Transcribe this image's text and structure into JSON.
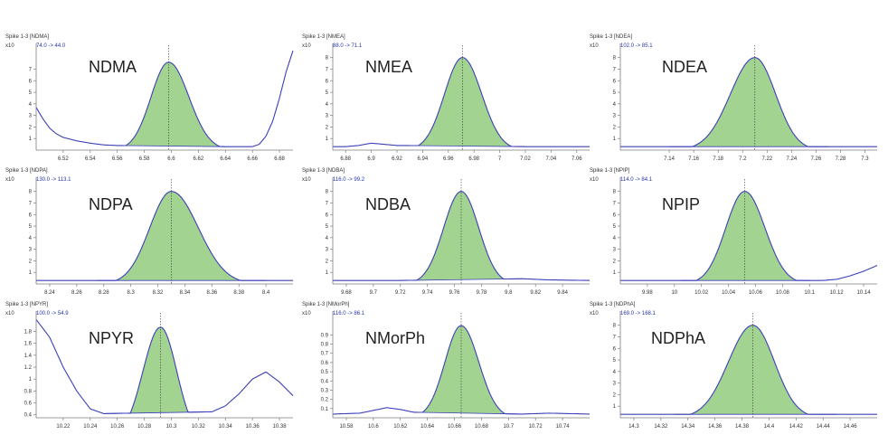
{
  "colors": {
    "fill": "#a3d391",
    "line": "#3b3fb8",
    "axis": "#7d7d7d",
    "marker": "#333333"
  },
  "chart_data": [
    {
      "type": "line",
      "title": "NDMA",
      "header": "Spike 1-3 [NDMA]",
      "scale_label": "x10",
      "transition": "74.0 -> 44.0",
      "xlim": [
        6.5,
        6.69
      ],
      "ylim": [
        0,
        8.6
      ],
      "xticks": [
        "6.52",
        "6.54",
        "6.56",
        "6.58",
        "6.6",
        "6.62",
        "6.64",
        "6.66",
        "6.68"
      ],
      "yticks": [
        "1",
        "2",
        "3",
        "4",
        "5",
        "6",
        "7"
      ],
      "peak": {
        "center": 6.598,
        "height": 7.6,
        "sigma_left": 0.013,
        "sigma_right": 0.015,
        "fill_from": 6.56,
        "fill_to": 6.64
      },
      "curve": [
        [
          6.5,
          3.7
        ],
        [
          6.505,
          2.7
        ],
        [
          6.51,
          1.9
        ],
        [
          6.515,
          1.4
        ],
        [
          6.52,
          1.1
        ],
        [
          6.53,
          0.8
        ],
        [
          6.54,
          0.6
        ],
        [
          6.55,
          0.45
        ],
        [
          6.56,
          0.4
        ],
        [
          6.64,
          0.3
        ],
        [
          6.65,
          0.3
        ],
        [
          6.66,
          0.3
        ],
        [
          6.665,
          0.5
        ],
        [
          6.67,
          1.2
        ],
        [
          6.675,
          2.5
        ],
        [
          6.68,
          4.5
        ],
        [
          6.685,
          6.8
        ],
        [
          6.69,
          8.6
        ]
      ]
    },
    {
      "type": "line",
      "title": "NMEA",
      "header": "Spike 1-3 [NMEA]",
      "scale_label": "x10",
      "transition": "88.0 -> 71.1",
      "xlim": [
        6.87,
        7.07
      ],
      "ylim": [
        0,
        8.6
      ],
      "xticks": [
        "6.88",
        "6.9",
        "6.92",
        "6.94",
        "6.96",
        "6.98",
        "7",
        "7.02",
        "7.04",
        "7.06"
      ],
      "yticks": [
        "1",
        "2",
        "3",
        "4",
        "5",
        "6",
        "7",
        "8"
      ],
      "peak": {
        "center": 6.971,
        "height": 8.0,
        "sigma_left": 0.014,
        "sigma_right": 0.015,
        "fill_from": 6.925,
        "fill_to": 7.02
      },
      "curve": [
        [
          6.87,
          0.3
        ],
        [
          6.88,
          0.3
        ],
        [
          6.89,
          0.4
        ],
        [
          6.9,
          0.6
        ],
        [
          6.91,
          0.5
        ],
        [
          6.92,
          0.4
        ],
        [
          6.925,
          0.4
        ],
        [
          7.02,
          0.3
        ],
        [
          7.04,
          0.3
        ],
        [
          7.07,
          0.3
        ]
      ]
    },
    {
      "type": "line",
      "title": "NDEA",
      "header": "Spike 1-3 [NDEA]",
      "scale_label": "x10",
      "transition": "102.0 -> 85.1",
      "xlim": [
        7.1,
        7.31
      ],
      "ylim": [
        0,
        8.6
      ],
      "xticks": [
        "7.14",
        "7.16",
        "7.18",
        "7.2",
        "7.22",
        "7.24",
        "7.26",
        "7.28",
        "7.3"
      ],
      "yticks": [
        "1",
        "2",
        "3",
        "4",
        "5",
        "6",
        "7",
        "8"
      ],
      "peak": {
        "center": 7.21,
        "height": 8.0,
        "sigma_left": 0.02,
        "sigma_right": 0.017,
        "fill_from": 7.14,
        "fill_to": 7.27
      },
      "curve": [
        [
          7.1,
          0.3
        ],
        [
          7.14,
          0.3
        ],
        [
          7.27,
          0.3
        ],
        [
          7.31,
          0.3
        ]
      ]
    },
    {
      "type": "line",
      "title": "NDPA",
      "header": "Spike 1-3 [NDPA]",
      "scale_label": "x10",
      "transition": "130.0 -> 113.1",
      "xlim": [
        8.23,
        8.42
      ],
      "ylim": [
        0,
        8.6
      ],
      "xticks": [
        "8.24",
        "8.26",
        "8.28",
        "8.3",
        "8.32",
        "8.34",
        "8.36",
        "8.38",
        "8.4"
      ],
      "yticks": [
        "1",
        "2",
        "3",
        "4",
        "5",
        "6",
        "7",
        "8"
      ],
      "peak": {
        "center": 8.33,
        "height": 8.0,
        "sigma_left": 0.016,
        "sigma_right": 0.02,
        "fill_from": 8.275,
        "fill_to": 8.4
      },
      "curve": [
        [
          8.23,
          0.3
        ],
        [
          8.275,
          0.3
        ],
        [
          8.4,
          0.3
        ],
        [
          8.42,
          0.3
        ]
      ]
    },
    {
      "type": "line",
      "title": "NDBA",
      "header": "Spike 1-3 [NDBA]",
      "scale_label": "x10",
      "transition": "116.0 -> 99.2",
      "xlim": [
        9.67,
        9.86
      ],
      "ylim": [
        0,
        8.6
      ],
      "xticks": [
        "9.68",
        "9.7",
        "9.72",
        "9.74",
        "9.76",
        "9.78",
        "9.8",
        "9.82",
        "9.84"
      ],
      "yticks": [
        "1",
        "2",
        "3",
        "4",
        "5",
        "6",
        "7",
        "8"
      ],
      "peak": {
        "center": 9.765,
        "height": 8.0,
        "sigma_left": 0.013,
        "sigma_right": 0.013,
        "fill_from": 9.72,
        "fill_to": 9.81
      },
      "curve": [
        [
          9.67,
          0.3
        ],
        [
          9.72,
          0.3
        ],
        [
          9.81,
          0.45
        ],
        [
          9.83,
          0.35
        ],
        [
          9.86,
          0.3
        ]
      ]
    },
    {
      "type": "line",
      "title": "NPIP",
      "header": "Spike 1-3 [NPIP]",
      "scale_label": "x10",
      "transition": "114.0 -> 84.1",
      "xlim": [
        9.96,
        10.15
      ],
      "ylim": [
        0,
        8.6
      ],
      "xticks": [
        "9.98",
        "10",
        "10.02",
        "10.04",
        "10.06",
        "10.08",
        "10.1",
        "10.12",
        "10.14"
      ],
      "yticks": [
        "1",
        "2",
        "3",
        "4",
        "5",
        "6",
        "7",
        "8"
      ],
      "peak": {
        "center": 10.052,
        "height": 8.0,
        "sigma_left": 0.014,
        "sigma_right": 0.015,
        "fill_from": 10.005,
        "fill_to": 10.1
      },
      "curve": [
        [
          9.96,
          0.3
        ],
        [
          10.005,
          0.3
        ],
        [
          10.1,
          0.3
        ],
        [
          10.11,
          0.3
        ],
        [
          10.12,
          0.4
        ],
        [
          10.13,
          0.7
        ],
        [
          10.14,
          1.1
        ],
        [
          10.15,
          1.6
        ]
      ]
    },
    {
      "type": "line",
      "title": "NPYR",
      "header": "Spike 1-3 [NPYR]",
      "scale_label": "x10",
      "transition": "100.0 -> 54.9",
      "xlim": [
        10.2,
        10.39
      ],
      "ylim": [
        0.35,
        2.02
      ],
      "xticks": [
        "10.22",
        "10.24",
        "10.26",
        "10.28",
        "10.3",
        "10.32",
        "10.34",
        "10.36",
        "10.38"
      ],
      "yticks": [
        "0.4",
        "0.6",
        "0.8",
        "1",
        "1.2",
        "1.4",
        "1.6",
        "1.8"
      ],
      "peak": {
        "center": 10.292,
        "height": 1.87,
        "sigma_left": 0.013,
        "sigma_right": 0.012,
        "fill_from": 10.25,
        "fill_to": 10.33
      },
      "curve": [
        [
          10.2,
          2.0
        ],
        [
          10.21,
          1.7
        ],
        [
          10.22,
          1.2
        ],
        [
          10.23,
          0.8
        ],
        [
          10.24,
          0.5
        ],
        [
          10.25,
          0.42
        ],
        [
          10.33,
          0.45
        ],
        [
          10.34,
          0.55
        ],
        [
          10.35,
          0.75
        ],
        [
          10.36,
          1.0
        ],
        [
          10.37,
          1.12
        ],
        [
          10.38,
          0.95
        ],
        [
          10.39,
          0.72
        ]
      ]
    },
    {
      "type": "line",
      "title": "NMorPh",
      "header": "Spike 1-3 [NMorPh]",
      "scale_label": "x10",
      "transition": "116.0 -> 86.1",
      "xlim": [
        10.57,
        10.76
      ],
      "ylim": [
        0,
        1.08
      ],
      "xticks": [
        "10.58",
        "10.6",
        "10.62",
        "10.64",
        "10.66",
        "10.68",
        "10.7",
        "10.72",
        "10.74"
      ],
      "yticks": [
        "0.1",
        "0.2",
        "0.3",
        "0.4",
        "0.5",
        "0.6",
        "0.7",
        "0.8",
        "0.9"
      ],
      "peak": {
        "center": 10.665,
        "height": 1.0,
        "sigma_left": 0.012,
        "sigma_right": 0.013,
        "fill_from": 10.63,
        "fill_to": 10.71
      },
      "curve": [
        [
          10.57,
          0.04
        ],
        [
          10.59,
          0.05
        ],
        [
          10.6,
          0.08
        ],
        [
          10.61,
          0.11
        ],
        [
          10.62,
          0.09
        ],
        [
          10.63,
          0.06
        ],
        [
          10.71,
          0.04
        ],
        [
          10.73,
          0.05
        ],
        [
          10.76,
          0.04
        ]
      ]
    },
    {
      "type": "line",
      "title": "NDPhA",
      "header": "Spike 1-3 [NDPhA]",
      "scale_label": "x10",
      "transition": "169.0 -> 168.1",
      "xlim": [
        14.29,
        14.48
      ],
      "ylim": [
        0,
        8.6
      ],
      "xticks": [
        "14.3",
        "14.32",
        "14.34",
        "14.36",
        "14.38",
        "14.4",
        "14.42",
        "14.44",
        "14.46"
      ],
      "yticks": [
        "1",
        "2",
        "3",
        "4",
        "5",
        "6",
        "7",
        "8"
      ],
      "peak": {
        "center": 14.388,
        "height": 8.0,
        "sigma_left": 0.018,
        "sigma_right": 0.016,
        "fill_from": 14.33,
        "fill_to": 14.45
      },
      "curve": [
        [
          14.29,
          0.3
        ],
        [
          14.33,
          0.3
        ],
        [
          14.45,
          0.3
        ],
        [
          14.48,
          0.3
        ]
      ]
    }
  ]
}
